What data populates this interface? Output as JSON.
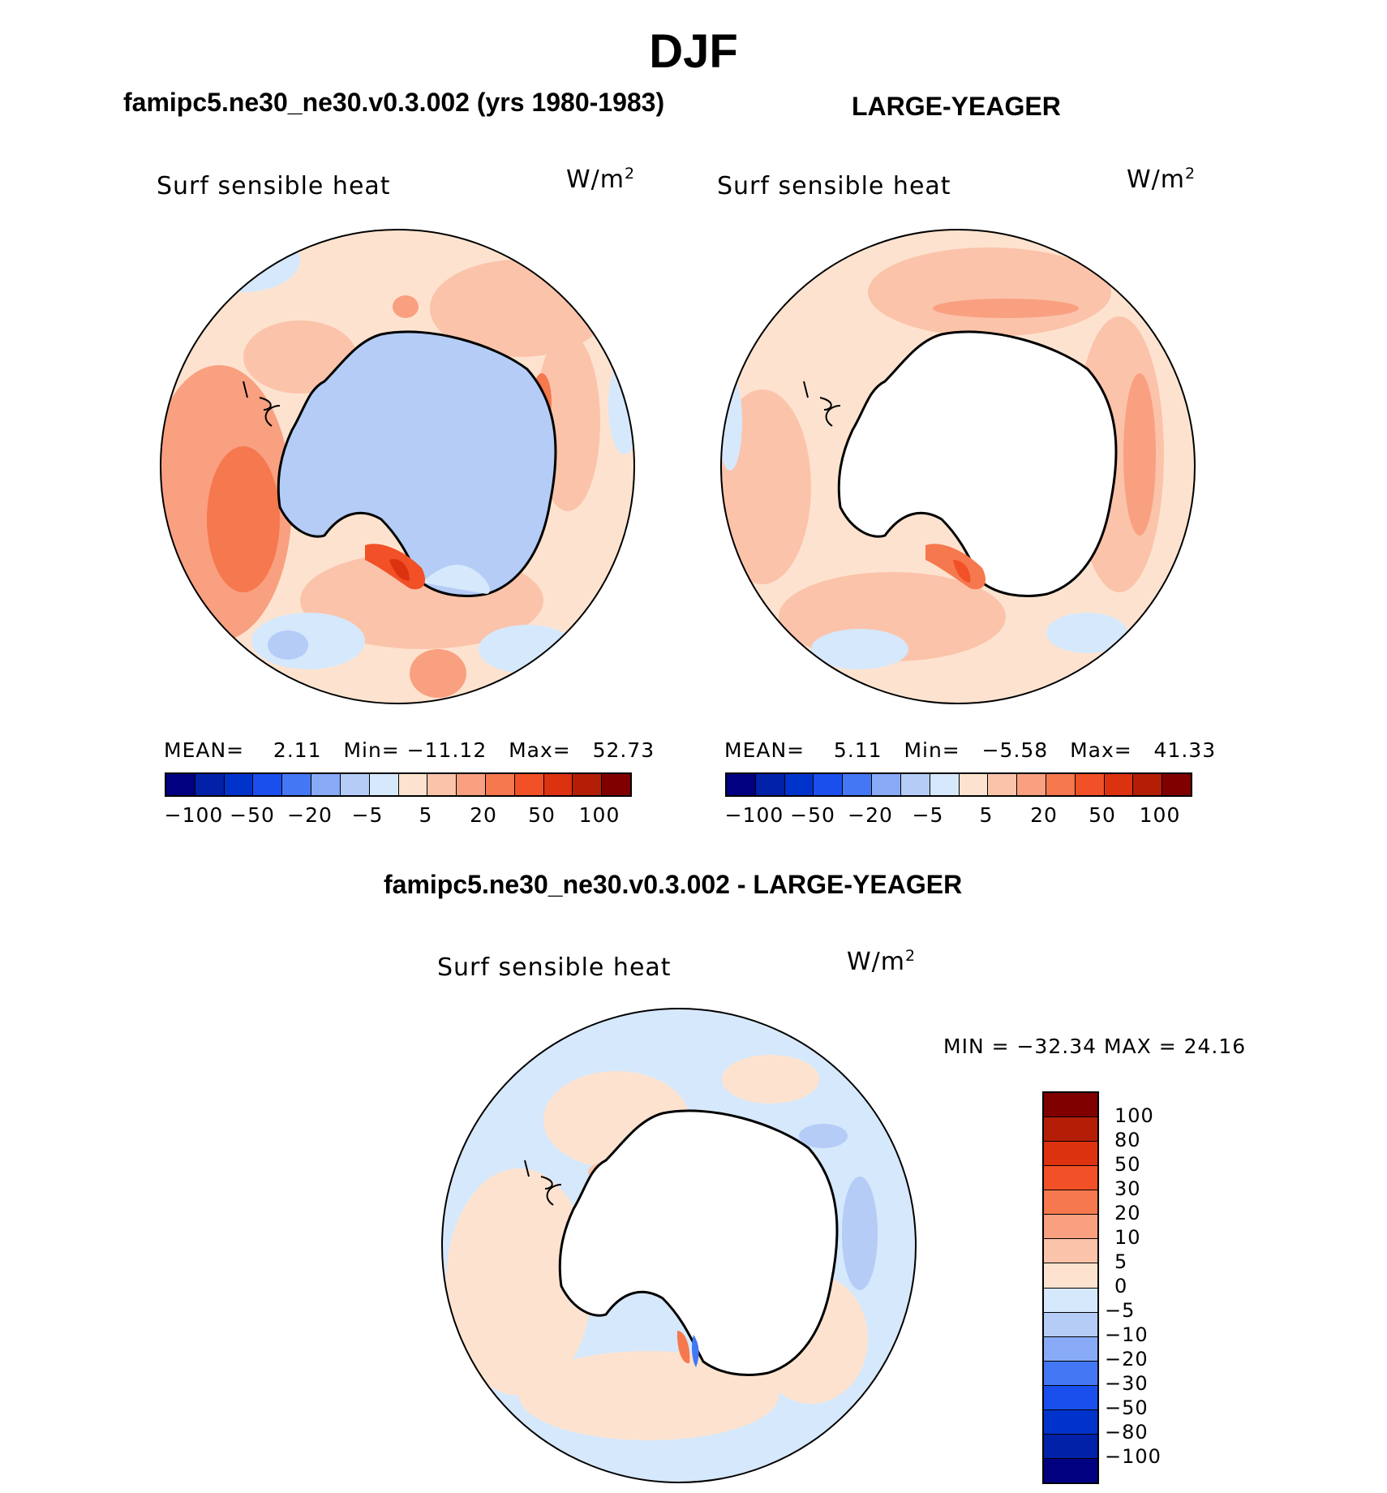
{
  "title": "DJF",
  "panels": [
    {
      "heading": "famipc5.ne30_ne30.v0.3.002 (yrs 1980-1983)",
      "variable": "Surf sensible heat",
      "units": "W/m",
      "units_sup": "2",
      "stats": {
        "mean_label": "MEAN=",
        "mean": "2.11",
        "min_label": "Min=",
        "min": "−11.12",
        "max_label": "Max=",
        "max": "52.73"
      },
      "antarctica_field": "#b4ccf6"
    },
    {
      "heading": "LARGE-YEAGER",
      "variable": "Surf sensible heat",
      "units": "W/m",
      "units_sup": "2",
      "stats": {
        "mean_label": "MEAN=",
        "mean": "5.11",
        "min_label": "Min=",
        "min": "−5.58",
        "max_label": "Max=",
        "max": "41.33"
      },
      "antarctica_field": "#ffffff"
    }
  ],
  "abs_colorbar": {
    "colors": [
      "#000080",
      "#0021a8",
      "#0033cc",
      "#1a4fee",
      "#4477f4",
      "#88aaf7",
      "#b4ccf6",
      "#d6e8fb",
      "#fde3cf",
      "#fbc3aa",
      "#f9a081",
      "#f6784e",
      "#f25026",
      "#dd3210",
      "#b41e06",
      "#800000"
    ],
    "tick_labels": [
      "−100",
      "−50",
      "−20",
      "−5",
      "5",
      "20",
      "50",
      "100"
    ]
  },
  "diff_panel": {
    "heading": "famipc5.ne30_ne30.v0.3.002 - LARGE-YEAGER",
    "variable": "Surf sensible heat",
    "units": "W/m",
    "units_sup": "2",
    "minmax": "MIN = −32.34 MAX =  24.16",
    "colorbar": {
      "colors": [
        "#800000",
        "#b41e06",
        "#dd3210",
        "#f25026",
        "#f6784e",
        "#f9a081",
        "#fbc3aa",
        "#fde3cf",
        "#d6e8fb",
        "#b4ccf6",
        "#88aaf7",
        "#4477f4",
        "#1a4fee",
        "#0033cc",
        "#0021a8",
        "#000080"
      ],
      "tick_labels": [
        "100",
        "80",
        "50",
        "30",
        "20",
        "10",
        "5",
        "0",
        "−5",
        "−10",
        "−20",
        "−30",
        "−50",
        "−80",
        "−100"
      ]
    }
  }
}
